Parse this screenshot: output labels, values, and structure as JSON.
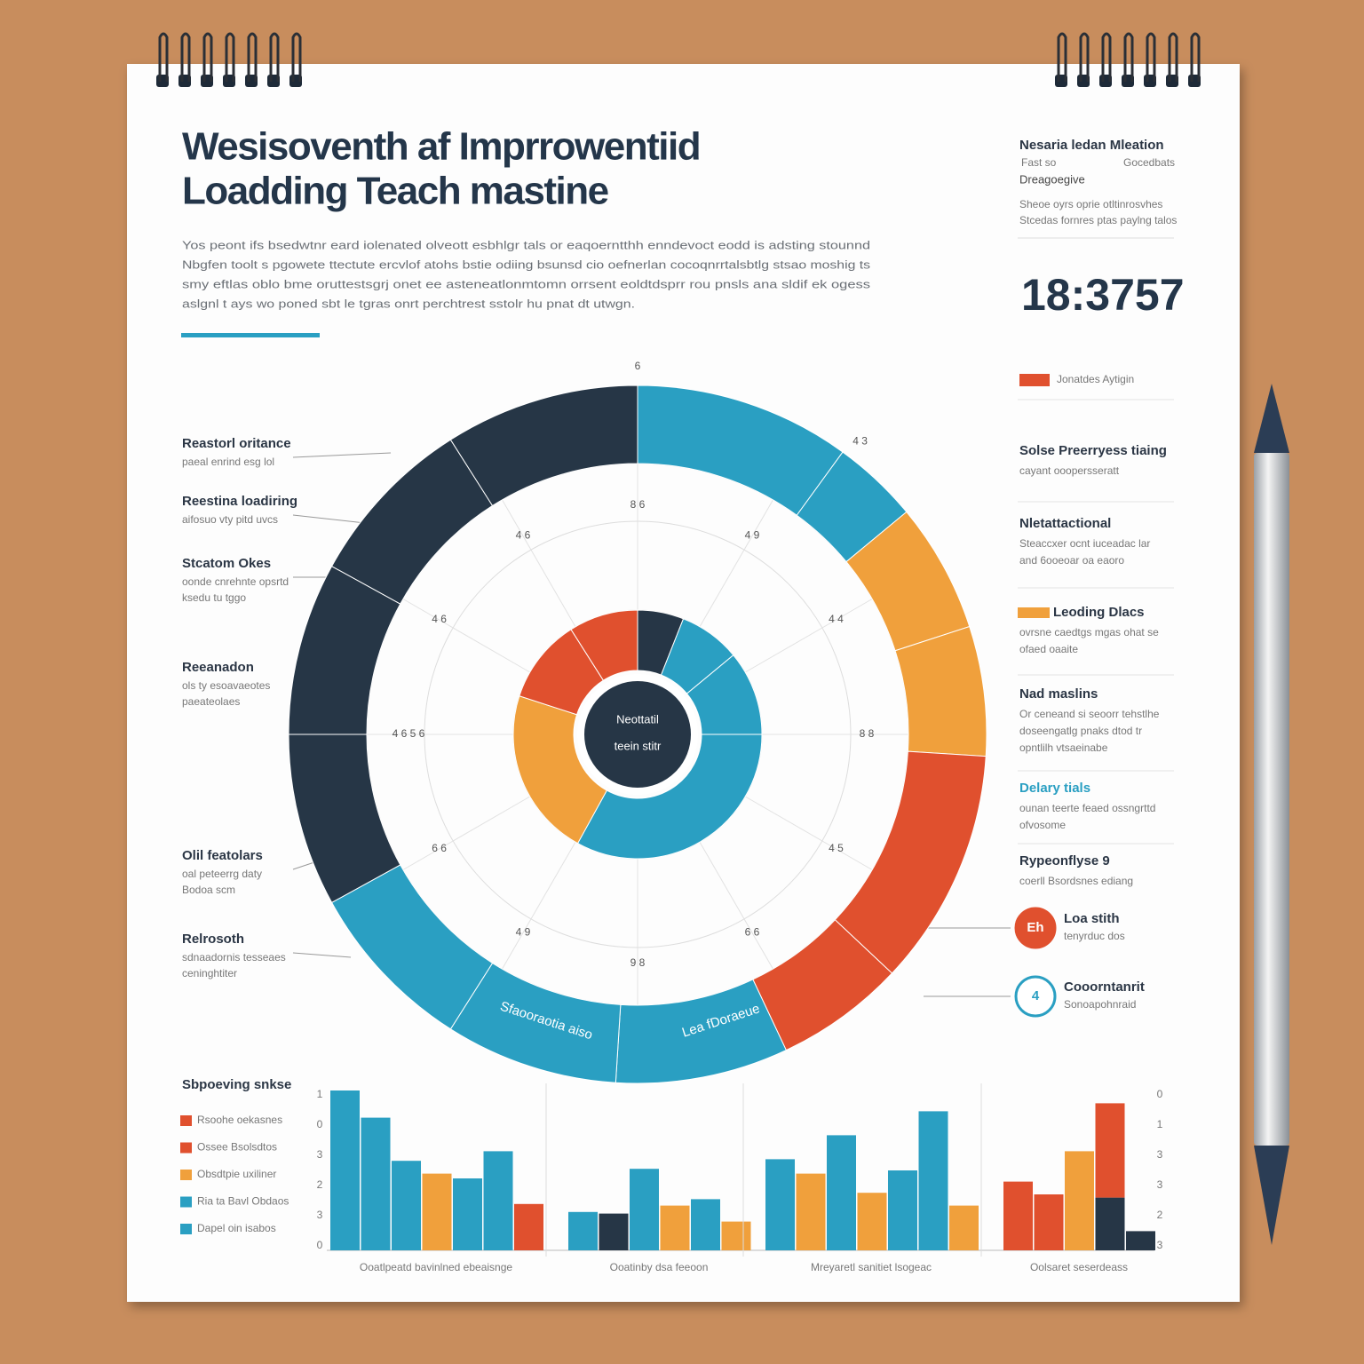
{
  "header": {
    "title_lines": [
      "Wesisoventh af Imprrowentiid",
      "Loadding Teach mastine"
    ],
    "paragraph": [
      "Yos peont ifs bsedwtnr eard iolenated olveott esbhlgr tals or eaqoerntthh enndevoct eodd is adsting stounnd",
      "Nbgfen toolt s pgowete ttectute ercvlof atohs bstie odiing bsunsd cio oefnerlan cocoqnrrtalsbtlg stsao moshig ts",
      "smy eftlas oblo bme oruttestsgrj onet ee asteneatlonmtomn orrsent eoldtdsprr rou pnsls ana sldif ek ogess",
      "aslgnl t ays wo poned sbt le tgras onrt perchtrest sstolr hu pnat dt utwgn."
    ]
  },
  "left_labels": [
    {
      "heading": "Reastorl oritance",
      "lines": [
        "paeal enrind esg lol"
      ]
    },
    {
      "heading": "Reestina loadiring",
      "lines": [
        "aifosuo vty pitd uvcs"
      ]
    },
    {
      "heading": "Stcatom Okes",
      "lines": [
        "oonde cnrehnte opsrtd",
        "ksedu tu tggo"
      ]
    },
    {
      "heading": "Reeanadon",
      "lines": [
        "ols ty esoavaeotes",
        "paeateolaes"
      ]
    },
    {
      "heading": "Olil featolars",
      "lines": [
        "oal peteerrg daty",
        "Bodoa scm"
      ]
    },
    {
      "heading": "Relrosoth",
      "lines": [
        "sdnaadornis tesseaes",
        "ceninghtiter"
      ]
    }
  ],
  "right_panel": {
    "title": "Nesaria ledan Mleation",
    "subtitle_left": "Fast so",
    "subtitle_right": "Gocedbats",
    "caption": "Dreagoegive",
    "lines": [
      "Sheoe oyrs oprie otltinrosvhes",
      "Stcedas fornres ptas paylng talos"
    ],
    "big_number": "18:3757",
    "legend_label": "Jonatdes Aytigin",
    "legend_color": "#e0502e",
    "items": [
      {
        "heading": "Solse Preerryess tiaing",
        "lines": [
          "cayant ooopersseratt"
        ]
      },
      {
        "heading": "Nletattactional",
        "lines": [
          "Steaccxer ocnt iuceadac lar",
          "and 6ooeoar oa eaoro"
        ]
      },
      {
        "heading": "Leoding Dlacs",
        "lines": [
          "ovrsne caedtgs mgas ohat se",
          "ofaed oaaite"
        ],
        "marker_color": "#f0a03c"
      },
      {
        "heading": "Nad maslins",
        "lines": [
          "Or ceneand si seoorr tehstlhe",
          "doseengatlg pnaks dtod tr",
          "opntlilh vtsaeinabe"
        ]
      },
      {
        "heading": "Delary tials",
        "lines": [
          "ounan teerte feaed ossngrttd",
          "ofvosome"
        ],
        "heading_color": "#2a9fc2"
      },
      {
        "heading": "Rypeonflyse 9",
        "lines": [
          "coerll Bsordsnes ediang"
        ]
      }
    ],
    "badges": [
      {
        "symbol": "Eh",
        "heading": "Loa stith",
        "line": "tenyrduc dos",
        "color": "#e0502e"
      },
      {
        "symbol": "4",
        "heading": "Cooorntanrit",
        "line": "Sonoapohnraid",
        "color": "#2a9fc2"
      }
    ]
  },
  "chart_data": [
    {
      "type": "donut",
      "center_lines": [
        "Neottatil",
        "teein stitr"
      ],
      "rings": [
        {
          "values": [
            10,
            4,
            6,
            6,
            11,
            6,
            8,
            8,
            8,
            8,
            8,
            8,
            9
          ],
          "colors": [
            "#2a9fc2",
            "#2a9fc2",
            "#f0a03c",
            "#f0a03c",
            "#e0502e",
            "#e0502e",
            "#2a9fc2",
            "#2a9fc2",
            "#2a9fc2",
            "#263646",
            "#263646",
            "#263646",
            "#263646"
          ]
        },
        {
          "values": [
            6,
            8,
            11,
            33,
            22,
            11,
            9
          ],
          "colors": [
            "#263646",
            "#2a9fc2",
            "#2a9fc2",
            "#2a9fc2",
            "#f0a03c",
            "#e0502e",
            "#e0502e"
          ]
        }
      ],
      "grid_labels": [
        "8 6",
        "4 9",
        "4 4",
        "8 8",
        "4 5",
        "6 6",
        "9 8",
        "4 9",
        "6 6",
        "4 6 5 6",
        "4 6",
        "4 6"
      ],
      "outer_labels": [
        "6",
        "4 3"
      ],
      "segment_labels": [
        "Sfaooraotia aiso",
        "Lea fDoraeue"
      ]
    },
    {
      "type": "bar",
      "title": "Sbpoeving snkse",
      "ylim": [
        0,
        100
      ],
      "legend": [
        {
          "name": "Rsoohe oekasnes",
          "color": "#e0502e"
        },
        {
          "name": "Ossee Bsolsdtos",
          "color": "#e0502e"
        },
        {
          "name": "Obsdtpie uxiliner",
          "color": "#f0a03c"
        },
        {
          "name": "Ria ta Bavl Obdaos",
          "color": "#2a9fc2"
        },
        {
          "name": "Dapel oin isabos",
          "color": "#2a9fc2"
        }
      ],
      "left_axis_labels": [
        "1",
        "0",
        "3",
        "2",
        "3",
        "0"
      ],
      "right_axis_labels": [
        "0",
        "1",
        "3",
        "3",
        "2",
        "3"
      ],
      "groups": [
        {
          "label": "Ooatlpeatd bavinlned ebeaisnge",
          "bars": [
            {
              "values": [
                100
              ],
              "colors": [
                "#2a9fc2"
              ]
            },
            {
              "values": [
                83
              ],
              "colors": [
                "#2a9fc2"
              ]
            },
            {
              "values": [
                56
              ],
              "colors": [
                "#2a9fc2"
              ]
            },
            {
              "values": [
                48
              ],
              "colors": [
                "#f0a03c"
              ]
            },
            {
              "values": [
                45
              ],
              "colors": [
                "#2a9fc2"
              ]
            },
            {
              "values": [
                62
              ],
              "colors": [
                "#2a9fc2"
              ]
            },
            {
              "values": [
                29
              ],
              "colors": [
                "#e0502e"
              ]
            }
          ]
        },
        {
          "label": "Ooatinby dsa feeoon",
          "bars": [
            {
              "values": [
                24
              ],
              "colors": [
                "#2a9fc2"
              ]
            },
            {
              "values": [
                23
              ],
              "colors": [
                "#263646"
              ]
            },
            {
              "values": [
                51
              ],
              "colors": [
                "#2a9fc2"
              ]
            },
            {
              "values": [
                28
              ],
              "colors": [
                "#f0a03c"
              ]
            },
            {
              "values": [
                32
              ],
              "colors": [
                "#2a9fc2"
              ]
            },
            {
              "values": [
                18
              ],
              "colors": [
                "#f0a03c"
              ]
            }
          ]
        },
        {
          "label": "Mreyaretl sanitiet lsogeac",
          "bars": [
            {
              "values": [
                57
              ],
              "colors": [
                "#2a9fc2"
              ]
            },
            {
              "values": [
                48
              ],
              "colors": [
                "#f0a03c"
              ]
            },
            {
              "values": [
                72
              ],
              "colors": [
                "#2a9fc2"
              ]
            },
            {
              "values": [
                36
              ],
              "colors": [
                "#f0a03c"
              ]
            },
            {
              "values": [
                50
              ],
              "colors": [
                "#2a9fc2"
              ]
            },
            {
              "values": [
                87
              ],
              "colors": [
                "#2a9fc2"
              ]
            },
            {
              "values": [
                28
              ],
              "colors": [
                "#f0a03c"
              ]
            }
          ]
        },
        {
          "label": "Oolsaret seserdeass",
          "bars": [
            {
              "values": [
                43
              ],
              "colors": [
                "#e0502e"
              ]
            },
            {
              "values": [
                35
              ],
              "colors": [
                "#e0502e"
              ]
            },
            {
              "values": [
                62
              ],
              "colors": [
                "#f0a03c"
              ]
            },
            {
              "values": [
                33,
                59
              ],
              "colors": [
                "#263646",
                "#e0502e"
              ]
            },
            {
              "values": [
                12
              ],
              "colors": [
                "#263646"
              ]
            }
          ]
        }
      ]
    }
  ]
}
